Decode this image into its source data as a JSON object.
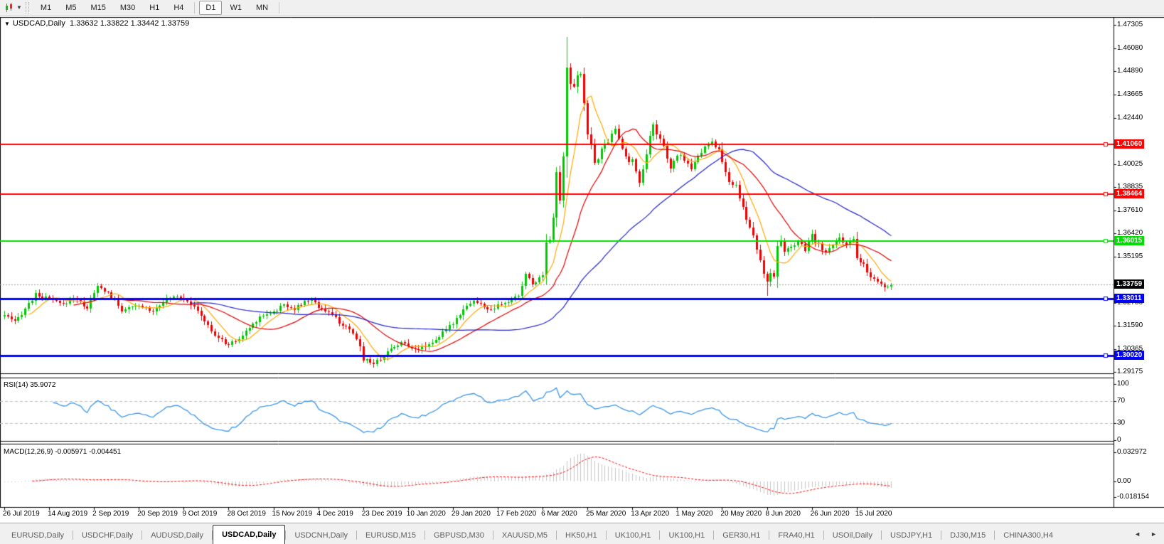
{
  "toolbar": {
    "groups": [
      [
        "M1",
        "M5",
        "M15",
        "M30",
        "H1",
        "H4"
      ],
      [
        "D1",
        "W1",
        "MN"
      ]
    ],
    "active": "D1",
    "tool_icon": "chart-cursor-tool-icon",
    "dropdown_icon": "chevron-down-icon"
  },
  "chart": {
    "title": {
      "marker": "▼",
      "symbol_period": "USDCAD,Daily",
      "ohlc_text": "1.33632 1.33822 1.33442 1.33759"
    },
    "price_axis": {
      "ticks": [
        "1.47305",
        "1.46080",
        "1.44890",
        "1.43665",
        "1.42440",
        "1.40025",
        "1.38835",
        "1.37610",
        "1.36420",
        "1.35195",
        "1.32780",
        "1.31590",
        "1.30365",
        "1.29175"
      ]
    },
    "levels": [
      {
        "label": "1.41060",
        "value": 1.4106,
        "color": "#FF0000",
        "thickness": 2
      },
      {
        "label": "1.38464",
        "value": 1.38464,
        "color": "#FF0000",
        "thickness": 2
      },
      {
        "label": "1.36015",
        "value": 1.36015,
        "color": "#00DF00",
        "thickness": 2
      },
      {
        "label": "1.33011",
        "value": 1.33011,
        "color": "#0000FF",
        "thickness": 3
      },
      {
        "label": "1.30020",
        "value": 1.3002,
        "color": "#0000FF",
        "thickness": 3
      }
    ],
    "current_price": {
      "label": "1.33759",
      "value": 1.33759,
      "color": "#000000"
    },
    "date_axis": {
      "labels": [
        "26 Jul 2019",
        "14 Aug 2019",
        "2 Sep 2019",
        "20 Sep 2019",
        "9 Oct 2019",
        "28 Oct 2019",
        "15 Nov 2019",
        "4 Dec 2019",
        "23 Dec 2019",
        "10 Jan 2020",
        "29 Jan 2020",
        "17 Feb 2020",
        "6 Mar 2020",
        "25 Mar 2020",
        "13 Apr 2020",
        "1 May 2020",
        "20 May 2020",
        "8 Jun 2020",
        "26 Jun 2020",
        "15 Jul 2020"
      ]
    }
  },
  "chart_data": {
    "type": "candlestick",
    "symbol": "USDCAD",
    "timeframe": "Daily",
    "last_candle": {
      "open": 1.33632,
      "high": 1.33822,
      "low": 1.33442,
      "close": 1.33759
    },
    "price_range_shown": [
      1.29175,
      1.47305
    ],
    "num_candles": 258,
    "candles_per_date_tick": 13,
    "up_color": "#00C800",
    "down_color": "#EE0000",
    "close_path": [
      [
        0,
        1.3215
      ],
      [
        3,
        1.3175
      ],
      [
        6,
        1.325
      ],
      [
        9,
        1.332
      ],
      [
        13,
        1.3298
      ],
      [
        17,
        1.3268
      ],
      [
        20,
        1.3308
      ],
      [
        24,
        1.3252
      ],
      [
        27,
        1.3362
      ],
      [
        30,
        1.333
      ],
      [
        34,
        1.3242
      ],
      [
        39,
        1.3262
      ],
      [
        43,
        1.3238
      ],
      [
        46,
        1.3288
      ],
      [
        50,
        1.3318
      ],
      [
        53,
        1.3292
      ],
      [
        57,
        1.3212
      ],
      [
        60,
        1.3128
      ],
      [
        63,
        1.3078
      ],
      [
        65,
        1.3062
      ],
      [
        68,
        1.309
      ],
      [
        71,
        1.3148
      ],
      [
        74,
        1.3208
      ],
      [
        78,
        1.3232
      ],
      [
        81,
        1.3268
      ],
      [
        84,
        1.3248
      ],
      [
        87,
        1.3282
      ],
      [
        89,
        1.3298
      ],
      [
        91,
        1.3258
      ],
      [
        94,
        1.3228
      ],
      [
        97,
        1.3178
      ],
      [
        100,
        1.3132
      ],
      [
        102,
        1.3092
      ],
      [
        104,
        1.2992
      ],
      [
        107,
        1.2962
      ],
      [
        109,
        1.2986
      ],
      [
        112,
        1.3038
      ],
      [
        115,
        1.3072
      ],
      [
        117,
        1.3052
      ],
      [
        120,
        1.3038
      ],
      [
        123,
        1.3062
      ],
      [
        126,
        1.3102
      ],
      [
        130,
        1.3172
      ],
      [
        133,
        1.3252
      ],
      [
        136,
        1.3288
      ],
      [
        139,
        1.3258
      ],
      [
        141,
        1.3238
      ],
      [
        143,
        1.3262
      ],
      [
        146,
        1.3282
      ],
      [
        149,
        1.3318
      ],
      [
        151,
        1.3428
      ],
      [
        153,
        1.3378
      ],
      [
        155,
        1.3408
      ],
      [
        156,
        1.3422
      ],
      [
        157,
        1.3658
      ],
      [
        158,
        1.3612
      ],
      [
        159,
        1.3758
      ],
      [
        160,
        1.3928
      ],
      [
        161,
        1.3808
      ],
      [
        162,
        1.4048
      ],
      [
        163,
        1.4508
      ],
      [
        164,
        1.4438
      ],
      [
        165,
        1.4398
      ],
      [
        166,
        1.4488
      ],
      [
        167,
        1.4478
      ],
      [
        168,
        1.4328
      ],
      [
        169,
        1.4178
      ],
      [
        171,
        1.3998
      ],
      [
        173,
        1.4088
      ],
      [
        175,
        1.4128
      ],
      [
        177,
        1.4178
      ],
      [
        179,
        1.4088
      ],
      [
        181,
        1.4018
      ],
      [
        182,
        1.4028
      ],
      [
        184,
        1.3918
      ],
      [
        186,
        1.4058
      ],
      [
        188,
        1.4208
      ],
      [
        189,
        1.4158
      ],
      [
        191,
        1.4088
      ],
      [
        193,
        1.3988
      ],
      [
        195,
        1.4058
      ],
      [
        197,
        1.4028
      ],
      [
        199,
        1.3968
      ],
      [
        201,
        1.4048
      ],
      [
        203,
        1.4098
      ],
      [
        205,
        1.4118
      ],
      [
        207,
        1.4078
      ],
      [
        208,
        1.3988
      ],
      [
        210,
        1.3918
      ],
      [
        212,
        1.3888
      ],
      [
        214,
        1.3778
      ],
      [
        216,
        1.3678
      ],
      [
        218,
        1.3568
      ],
      [
        220,
        1.3418
      ],
      [
        221,
        1.3388
      ],
      [
        222,
        1.3428
      ],
      [
        223,
        1.3408
      ],
      [
        224,
        1.3638
      ],
      [
        226,
        1.3548
      ],
      [
        228,
        1.3578
      ],
      [
        230,
        1.3598
      ],
      [
        232,
        1.3558
      ],
      [
        234,
        1.3628
      ],
      [
        236,
        1.3578
      ],
      [
        238,
        1.3538
      ],
      [
        240,
        1.3578
      ],
      [
        242,
        1.3618
      ],
      [
        244,
        1.3588
      ],
      [
        246,
        1.3618
      ],
      [
        247,
        1.3508
      ],
      [
        249,
        1.3478
      ],
      [
        251,
        1.3408
      ],
      [
        253,
        1.3388
      ],
      [
        255,
        1.3358
      ],
      [
        256,
        1.33632
      ],
      [
        257,
        1.33759
      ]
    ],
    "overrides": {
      "163": {
        "h": 1.4668
      },
      "221": {
        "l": 1.3315
      },
      "256": {
        "c": 1.33632
      },
      "257": {
        "o": 1.33632,
        "h": 1.33822,
        "l": 1.33442,
        "c": 1.33759
      }
    },
    "moving_averages": [
      {
        "name": "fast-ma",
        "period": 8,
        "color": "#FFA800"
      },
      {
        "name": "medium-ma",
        "period": 21,
        "color": "#E00000"
      },
      {
        "name": "slow-ma",
        "period": 55,
        "color": "#2121C8"
      }
    ],
    "indicators": [
      {
        "name": "RSI",
        "period": 14,
        "current_value": 35.9072,
        "label": "RSI(14) 35.9072",
        "overbought": 70,
        "oversold": 30,
        "scale_ticks": [
          "100",
          "70",
          "30",
          "0"
        ],
        "scale_tick_values": [
          100,
          70,
          30,
          0
        ],
        "line_color": "#3A96E8",
        "level_line_color": "#BDBDBD"
      },
      {
        "name": "MACD",
        "fast": 12,
        "slow": 26,
        "signal": 9,
        "macd_value": -0.005971,
        "signal_value": -0.004451,
        "label": "MACD(12,26,9) -0.005971 -0.004451",
        "scale_ticks": [
          "0.032972",
          "0.00",
          "-0.018154"
        ],
        "scale_tick_values": [
          0.032972,
          0,
          -0.018154
        ],
        "histogram_color": "#C4C4C4",
        "signal_color": "#FF0000"
      }
    ]
  },
  "tabs": {
    "items": [
      {
        "label": "EURUSD,Daily",
        "active": false
      },
      {
        "label": "USDCHF,Daily",
        "active": false
      },
      {
        "label": "AUDUSD,Daily",
        "active": false
      },
      {
        "label": "USDCAD,Daily",
        "active": true
      },
      {
        "label": "USDCNH,Daily",
        "active": false
      },
      {
        "label": "EURUSD,M15",
        "active": false
      },
      {
        "label": "GBPUSD,M30",
        "active": false
      },
      {
        "label": "XAUUSD,M5",
        "active": false
      },
      {
        "label": "HK50,H1",
        "active": false
      },
      {
        "label": "UK100,H1",
        "active": false
      },
      {
        "label": "UK100,H1",
        "active": false
      },
      {
        "label": "GER30,H1",
        "active": false
      },
      {
        "label": "FRA40,H1",
        "active": false
      },
      {
        "label": "USOil,Daily",
        "active": false
      },
      {
        "label": "USDJPY,H1",
        "active": false
      },
      {
        "label": "DJ30,M15",
        "active": false
      },
      {
        "label": "CHINA300,H4",
        "active": false
      }
    ],
    "scroll_left": "◄",
    "scroll_right": "►"
  }
}
